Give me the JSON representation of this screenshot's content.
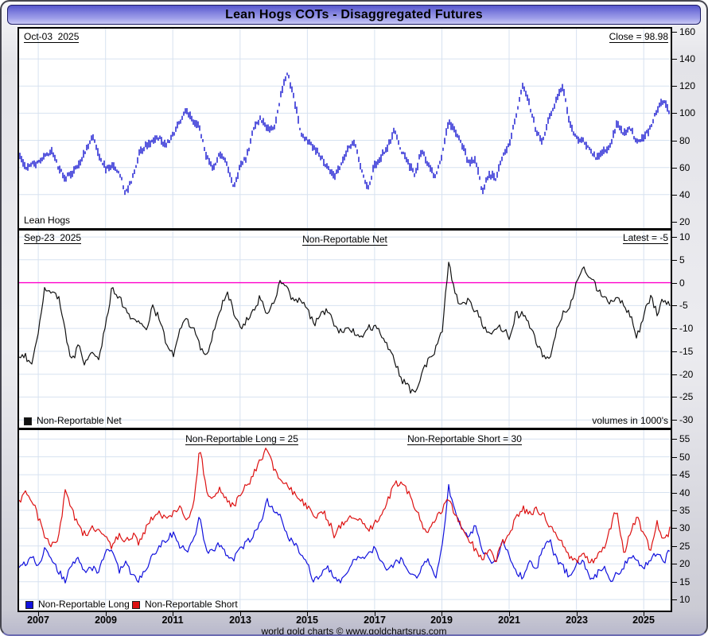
{
  "window": {
    "title": "Lean Hogs COTs - Disaggregated Futures",
    "footer": "world gold charts © www.goldchartsrus.com"
  },
  "top_panel": {
    "date_label": "Oct-03  2025",
    "close_label": "Close = 98.98",
    "instrument_label": "Lean Hogs"
  },
  "middle_panel": {
    "date_label": "Sep-23  2025",
    "title": "Non-Reportable Net",
    "latest_label": "Latest = -5",
    "volumes_label": "volumes in 1000's",
    "legend_net": "Non-Reportable Net"
  },
  "bottom_panel": {
    "long_annotation": "Non-Reportable Long = 25",
    "short_annotation": "Non-Reportable Short = 30",
    "legend_long": "Non-Reportable Long",
    "legend_short": "Non-Reportable Short"
  },
  "colors": {
    "price": "#0000cc",
    "net": "#111111",
    "long": "#1111dd",
    "short": "#dd1111",
    "zero_line": "#ff00cc",
    "grid": "#d7e2f0",
    "separator": "#000000"
  },
  "chart_data": {
    "x_range": [
      2006.43,
      2025.8
    ],
    "x_ticks": [
      2007,
      2009,
      2011,
      2013,
      2015,
      2017,
      2019,
      2021,
      2023,
      2025
    ],
    "panels": [
      {
        "name": "price",
        "type": "bar",
        "title": "Lean Hogs",
        "ylim": [
          15.3,
          162.3
        ],
        "y_ticks": [
          160,
          140,
          120,
          100,
          80,
          60,
          40,
          20
        ],
        "grid": [
          140,
          120,
          100,
          80,
          60,
          40
        ],
        "annotations": [
          "Oct-03  2025",
          "Close = 98.98"
        ],
        "close": 98.98,
        "series": [
          {
            "name": "Lean Hogs price",
            "style": "bars",
            "color": "#0000cc",
            "x0": 2006.4,
            "x1": 2025.8,
            "x_step": 0.2,
            "values": [
              72,
              60,
              62,
              64,
              69,
              72,
              60,
              52,
              56,
              62,
              71,
              84,
              70,
              59,
              62,
              57,
              41,
              52,
              70,
              76,
              80,
              82,
              76,
              84,
              94,
              102,
              95,
              89,
              68,
              60,
              71,
              62,
              46,
              60,
              68,
              88,
              96,
              90,
              88,
              112,
              130,
              112,
              86,
              80,
              74,
              68,
              60,
              54,
              62,
              74,
              80,
              60,
              44,
              62,
              68,
              76,
              88,
              72,
              63,
              55,
              73,
              62,
              53,
              68,
              94,
              87,
              77,
              63,
              67,
              42,
              55,
              52,
              67,
              77,
              97,
              120,
              107,
              87,
              79,
              97,
              110,
              119,
              93,
              81,
              79,
              73,
              67,
              71,
              75,
              92,
              85,
              89,
              79,
              83,
              89,
              103,
              110,
              98.98
            ]
          }
        ]
      },
      {
        "name": "net",
        "type": "line",
        "title": "Non-Reportable Net",
        "ylim": [
          -31.7,
          11.4
        ],
        "y_ticks": [
          10,
          5,
          0,
          -5,
          -10,
          -15,
          -20,
          -25,
          -30
        ],
        "grid": [
          10,
          5,
          -5,
          -10,
          -15,
          -20,
          -25,
          -30
        ],
        "zero_line": true,
        "annotations": [
          "Sep-23  2025",
          "Latest = -5",
          "volumes in 1000's"
        ],
        "latest": -5,
        "series": [
          {
            "name": "Non-Reportable Net",
            "style": "line",
            "color": "#111111",
            "noise": 1.6,
            "seed": 11,
            "x0": 2006.4,
            "x1": 2025.8,
            "x_step": 0.2,
            "values": [
              -17,
              -16,
              -18,
              -11,
              -1,
              -2,
              -3,
              -11,
              -17,
              -14,
              -18,
              -15,
              -17,
              -9,
              -1,
              -3,
              -6,
              -8,
              -8,
              -11,
              -5,
              -8,
              -13,
              -16,
              -11,
              -8,
              -10,
              -14,
              -16,
              -11,
              -6,
              -2,
              -6,
              -10,
              -8,
              -6,
              -3,
              -7,
              -4,
              0.5,
              -1.5,
              -4.5,
              -3.5,
              -6,
              -9,
              -7,
              -6,
              -9,
              -11,
              -9,
              -11,
              -12,
              -10,
              -9.5,
              -11,
              -14,
              -17,
              -21,
              -23,
              -24.5,
              -20,
              -17,
              -15,
              -11,
              4.5,
              -3,
              -5,
              -4,
              -6,
              -9,
              -11,
              -10,
              -10,
              -12,
              -7,
              -7,
              -9,
              -13,
              -16,
              -17,
              -11,
              -7,
              -5,
              0,
              3,
              1,
              -1,
              -3,
              -4,
              -3,
              -5,
              -7,
              -12,
              -7,
              -3,
              -6.5,
              -3.5,
              -5
            ]
          }
        ]
      },
      {
        "name": "long-short",
        "type": "line",
        "ylim": [
          6.9,
          57.5
        ],
        "y_ticks": [
          55,
          50,
          45,
          40,
          35,
          30,
          25,
          20,
          15,
          10
        ],
        "grid": [
          55,
          50,
          45,
          40,
          35,
          30,
          25,
          20,
          15,
          10
        ],
        "annotations": [
          "Non-Reportable Long = 25",
          "Non-Reportable Short = 30"
        ],
        "long_latest": 25,
        "short_latest": 30,
        "series": [
          {
            "name": "Non-Reportable Long",
            "style": "line",
            "color": "#1111dd",
            "noise": 1.9,
            "seed": 23,
            "x0": 2006.4,
            "x1": 2025.8,
            "x_step": 0.2,
            "values": [
              18.5,
              20,
              22,
              19,
              25,
              21,
              18,
              15,
              20,
              22,
              17,
              19,
              18,
              23,
              24,
              18,
              20,
              17,
              15.5,
              19,
              22,
              25,
              27,
              28.5,
              25,
              23.5,
              26,
              33.5,
              23,
              24,
              25.5,
              22,
              21,
              24,
              26,
              28,
              31,
              37.5,
              35,
              33,
              28,
              26,
              23,
              20,
              15,
              17,
              19,
              16,
              15.5,
              18,
              21,
              21.5,
              23,
              24.5,
              21,
              18.5,
              20,
              21.5,
              18,
              16,
              19,
              21,
              16,
              24,
              41.5,
              35,
              29,
              28,
              30.5,
              24,
              21,
              20.5,
              27,
              22,
              18,
              16,
              21.5,
              18.5,
              24,
              27,
              21,
              19,
              16.5,
              20,
              21,
              15,
              17,
              19.5,
              15.5,
              17,
              19,
              22.5,
              21,
              19,
              21,
              23.5,
              20,
              25
            ]
          },
          {
            "name": "Non-Reportable Short",
            "style": "line",
            "color": "#dd1111",
            "noise": 2.1,
            "seed": 37,
            "x0": 2006.4,
            "x1": 2025.8,
            "x_step": 0.2,
            "values": [
              37,
              40,
              38,
              33,
              28,
              25,
              27,
              40,
              35,
              30,
              28,
              31,
              29,
              27,
              25,
              28,
              26,
              28,
              26,
              30,
              33,
              35,
              32,
              34,
              36,
              33,
              35,
              53,
              40,
              38,
              41,
              38,
              36,
              39,
              42,
              45,
              49,
              52,
              47,
              44,
              42,
              40,
              38,
              36,
              33,
              35,
              33,
              28,
              31,
              33,
              32,
              33,
              30,
              31,
              34,
              38,
              42,
              43.5,
              40,
              36,
              31,
              29,
              33,
              35,
              38,
              34,
              30,
              27,
              24,
              20.5,
              25,
              21,
              26,
              28,
              33,
              35.5,
              34,
              35,
              34,
              31,
              28,
              25,
              22,
              21,
              23,
              20.5,
              22,
              24,
              30,
              35.5,
              23,
              28,
              33.5,
              28,
              24,
              32,
              26,
              30
            ]
          }
        ]
      }
    ]
  }
}
